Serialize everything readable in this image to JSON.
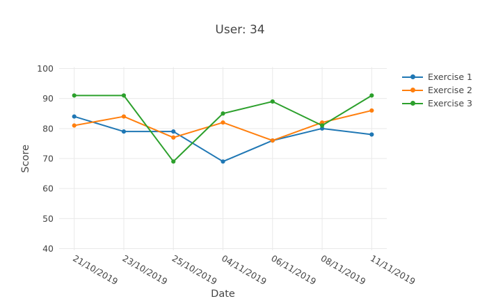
{
  "chart_data": {
    "type": "line",
    "mode": "lines+markers",
    "title": "User: 34",
    "xlabel": "Date",
    "ylabel": "Score",
    "ylim": [
      40,
      100
    ],
    "yticks": [
      40,
      50,
      60,
      70,
      80,
      90,
      100
    ],
    "grid": true,
    "legend_position": "top-right",
    "categories": [
      "21/10/2019",
      "23/10/2019",
      "25/10/2019",
      "04/11/2019",
      "06/11/2019",
      "08/11/2019",
      "11/11/2019"
    ],
    "series": [
      {
        "name": "Exercise 1",
        "color": "#1f77b4",
        "values": [
          84,
          79,
          79,
          69,
          76,
          80,
          78
        ]
      },
      {
        "name": "Exercise 2",
        "color": "#ff7f0e",
        "values": [
          81,
          84,
          77,
          82,
          76,
          82,
          86
        ]
      },
      {
        "name": "Exercise 3",
        "color": "#2ca02c",
        "values": [
          91,
          91,
          69,
          85,
          89,
          81,
          91
        ]
      }
    ]
  },
  "colors": {
    "text": "#444444",
    "grid": "#e9e9e9",
    "background": "#ffffff"
  }
}
